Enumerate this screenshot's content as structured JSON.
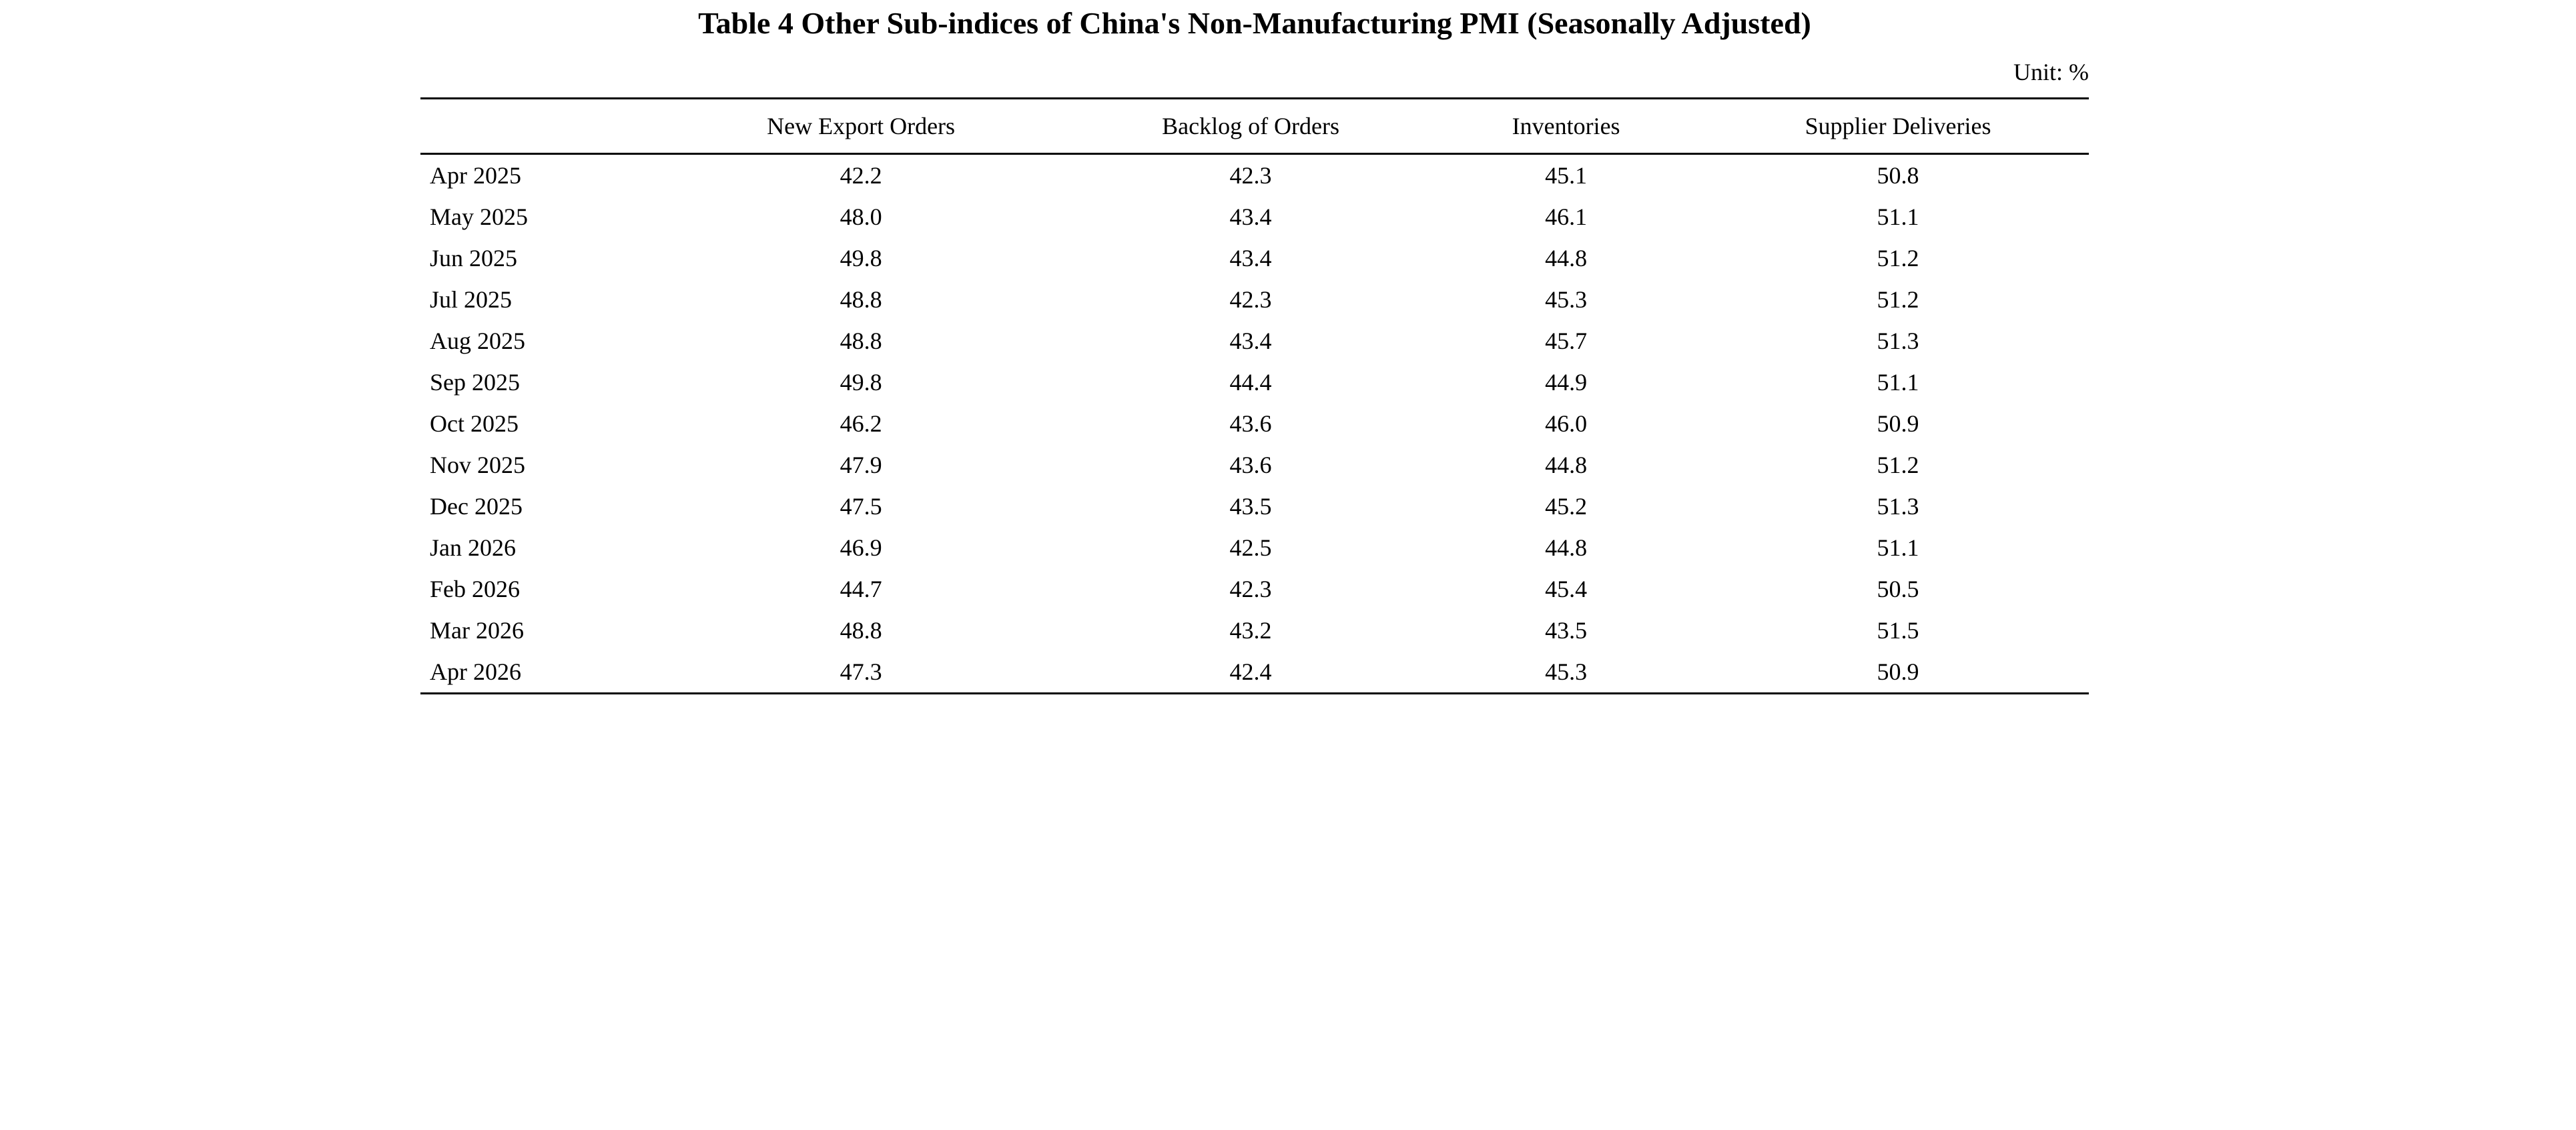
{
  "title": "Table 4 Other Sub-indices of China's Non-Manufacturing PMI (Seasonally Adjusted)",
  "unit_label": "Unit: %",
  "chart_data": {
    "type": "table",
    "title": "Table 4 Other Sub-indices of China's Non-Manufacturing PMI (Seasonally Adjusted)",
    "unit": "%",
    "columns": [
      "",
      "New Export Orders",
      "Backlog of Orders",
      "Inventories",
      "Supplier Deliveries"
    ],
    "rows": [
      {
        "label": "Apr 2025",
        "values": [
          42.2,
          42.3,
          45.1,
          50.8
        ]
      },
      {
        "label": "May 2025",
        "values": [
          48.0,
          43.4,
          46.1,
          51.1
        ]
      },
      {
        "label": "Jun 2025",
        "values": [
          49.8,
          43.4,
          44.8,
          51.2
        ]
      },
      {
        "label": "Jul 2025",
        "values": [
          48.8,
          42.3,
          45.3,
          51.2
        ]
      },
      {
        "label": "Aug 2025",
        "values": [
          48.8,
          43.4,
          45.7,
          51.3
        ]
      },
      {
        "label": "Sep 2025",
        "values": [
          49.8,
          44.4,
          44.9,
          51.1
        ]
      },
      {
        "label": "Oct 2025",
        "values": [
          46.2,
          43.6,
          46.0,
          50.9
        ]
      },
      {
        "label": "Nov 2025",
        "values": [
          47.9,
          43.6,
          44.8,
          51.2
        ]
      },
      {
        "label": "Dec 2025",
        "values": [
          47.5,
          43.5,
          45.2,
          51.3
        ]
      },
      {
        "label": "Jan 2026",
        "values": [
          46.9,
          42.5,
          44.8,
          51.1
        ]
      },
      {
        "label": "Feb 2026",
        "values": [
          44.7,
          42.3,
          45.4,
          50.5
        ]
      },
      {
        "label": "Mar 2026",
        "values": [
          48.8,
          43.2,
          43.5,
          51.5
        ]
      },
      {
        "label": "Apr 2026",
        "values": [
          47.3,
          42.4,
          45.3,
          50.9
        ]
      }
    ],
    "layout": {
      "grid": "horizontal rules only (top, below header, bottom)",
      "value_decimals": 1
    }
  }
}
